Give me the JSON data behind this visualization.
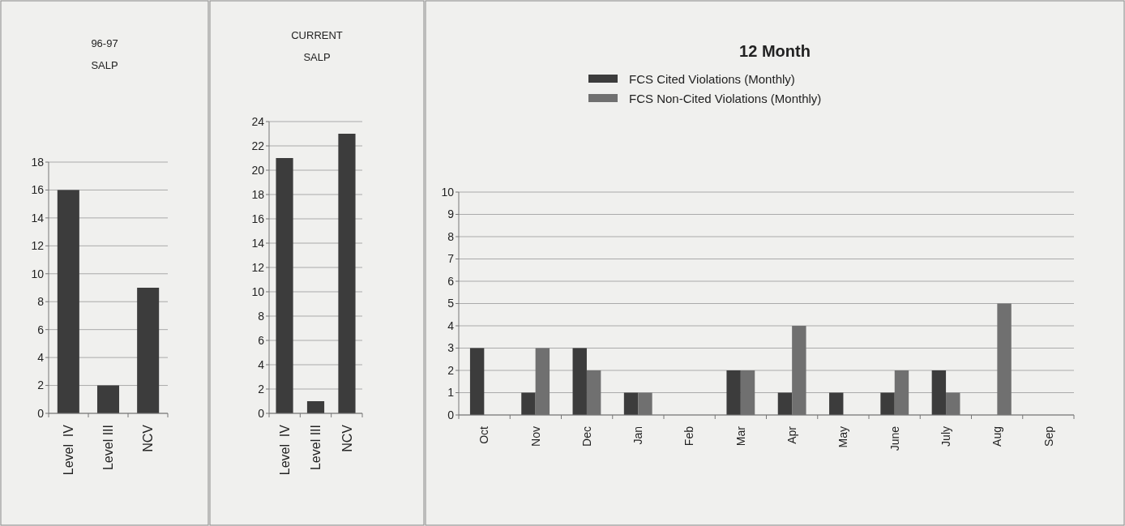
{
  "chart_data": [
    {
      "type": "bar",
      "title": "96-97",
      "subtitle": "SALP",
      "categories": [
        "Level  IV",
        "Level III",
        "NCV"
      ],
      "values": [
        16,
        2,
        9
      ],
      "color": "#3c3c3c",
      "ylim": [
        0,
        18
      ],
      "yticks": [
        0,
        2,
        4,
        6,
        8,
        10,
        12,
        14,
        16,
        18
      ],
      "grid": "y"
    },
    {
      "type": "bar",
      "title": "CURRENT",
      "subtitle": "SALP",
      "categories": [
        "Level  IV",
        "Level III",
        "NCV"
      ],
      "values": [
        21,
        1,
        23
      ],
      "color": "#3c3c3c",
      "ylim": [
        0,
        24
      ],
      "yticks": [
        0,
        2,
        4,
        6,
        8,
        10,
        12,
        14,
        16,
        18,
        20,
        22,
        24
      ],
      "grid": "y"
    },
    {
      "type": "bar",
      "title": "12 Month",
      "categories": [
        "Oct",
        "Nov",
        "Dec",
        "Jan",
        "Feb",
        "Mar",
        "Apr",
        "May",
        "June",
        "July",
        "Aug",
        "Sep"
      ],
      "series": [
        {
          "name": "FCS Cited Violations (Monthly)",
          "color": "#3c3c3c",
          "values": [
            3,
            1,
            3,
            1,
            0,
            2,
            1,
            1,
            1,
            2,
            0,
            0
          ]
        },
        {
          "name": "FCS Non-Cited Violations (Monthly)",
          "color": "#707070",
          "values": [
            0,
            3,
            2,
            1,
            0,
            2,
            4,
            0,
            2,
            1,
            5,
            0
          ]
        }
      ],
      "ylim": [
        0,
        10
      ],
      "yticks": [
        0,
        1,
        2,
        3,
        4,
        5,
        6,
        7,
        8,
        9,
        10
      ],
      "grid": "y",
      "legend": "top"
    }
  ]
}
